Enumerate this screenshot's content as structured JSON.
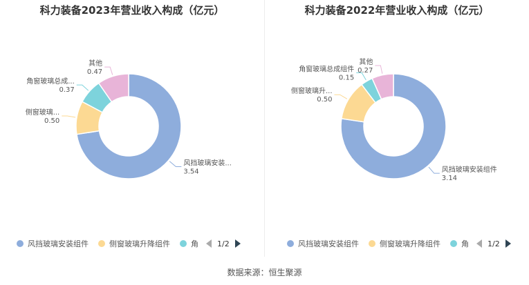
{
  "colors": [
    "#8eaddc",
    "#fcd993",
    "#7dd3dc",
    "#e8b4d8"
  ],
  "chart_data": [
    {
      "type": "pie",
      "title": "科力装备2023年营业收入构成（亿元）",
      "slices": [
        {
          "name": "风挡玻璃安装组件",
          "label": "风挡玻璃安装...",
          "value": 3.54,
          "value_text": "3.54"
        },
        {
          "name": "侧窗玻璃升降组件",
          "label": "侧窗玻璃...",
          "value": 0.5,
          "value_text": "0.50"
        },
        {
          "name": "角窗玻璃总成组件",
          "label": "角窗玻璃总成...",
          "value": 0.37,
          "value_text": "0.37"
        },
        {
          "name": "其他",
          "label": "其他",
          "value": 0.47,
          "value_text": "0.47"
        }
      ],
      "legend": {
        "items": [
          "风挡玻璃安装组件",
          "侧窗玻璃升降组件",
          "角"
        ],
        "page": "1/2",
        "placement": "bottom"
      }
    },
    {
      "type": "pie",
      "title": "科力装备2022年营业收入构成（亿元）",
      "slices": [
        {
          "name": "风挡玻璃安装组件",
          "label": "风挡玻璃安装组件",
          "value": 3.14,
          "value_text": "3.14"
        },
        {
          "name": "侧窗玻璃升降组件",
          "label": "侧窗玻璃升...",
          "value": 0.5,
          "value_text": "0.50"
        },
        {
          "name": "角窗玻璃总成组件",
          "label": "角窗玻璃总成组件",
          "value": 0.15,
          "value_text": "0.15"
        },
        {
          "name": "其他",
          "label": "其他",
          "value": 0.27,
          "value_text": "0.27"
        }
      ],
      "legend": {
        "items": [
          "风挡玻璃安装组件",
          "侧窗玻璃升降组件",
          "角"
        ],
        "page": "1/2",
        "placement": "bottom"
      }
    }
  ],
  "source": "数据来源：恒生聚源"
}
